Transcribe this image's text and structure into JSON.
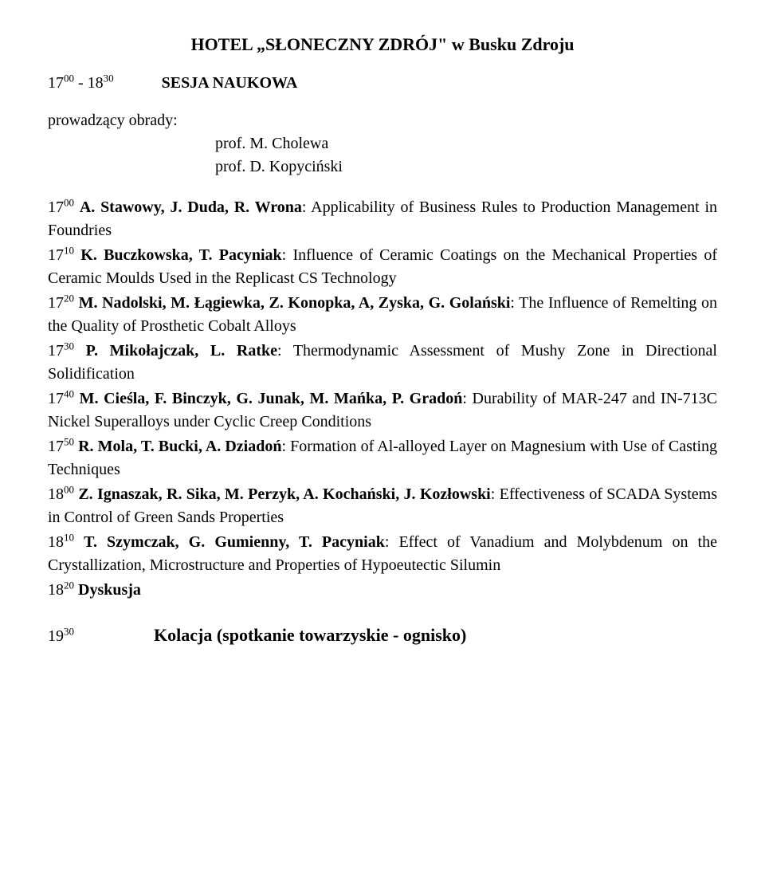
{
  "header": {
    "title": "HOTEL „SŁONECZNY ZDRÓJ\" w Busku Zdroju"
  },
  "session": {
    "time_lo": "17",
    "time_lo_sup": "00",
    "time_sep": "- 18",
    "time_hi_sup": "30",
    "label": "SESJA NAUKOWA"
  },
  "chairs": {
    "heading": "prowadzący obrady:",
    "chair1": "prof. M. Cholewa",
    "chair2": "prof. D. Kopyciński"
  },
  "items": [
    {
      "hour": "17",
      "min": "00",
      "authors": "A. Stawowy, J. Duda, R. Wrona",
      "title": ": Applicability of Business Rules to Production Management in Foundries"
    },
    {
      "hour": "17",
      "min": "10",
      "authors": "K. Buczkowska, T. Pacyniak",
      "title": ": Influence of Ceramic Coatings on the Mechanical Properties of Ceramic Moulds Used in the Replicast CS Technology"
    },
    {
      "hour": "17",
      "min": "20",
      "authors": "M. Nadolski, M. Łągiewka, Z. Konopka, A, Zyska, G. Golański",
      "title": ": The Influence of Remelting on the Quality of Prosthetic Cobalt Alloys"
    },
    {
      "hour": "17",
      "min": "30",
      "authors": "P. Mikołajczak, L. Ratke",
      "title": ": Thermodynamic Assessment of Mushy Zone in Directional Solidification"
    },
    {
      "hour": "17",
      "min": "40",
      "authors": "M. Cieśla, F. Binczyk, G. Junak, M. Mańka, P. Gradoń",
      "title": ": Durability of MAR-247 and IN-713C Nickel Superalloys under Cyclic Creep Conditions"
    },
    {
      "hour": "17",
      "min": "50",
      "authors": "R. Mola, T. Bucki, A. Dziadoń",
      "title": ": Formation of Al-alloyed Layer on Magnesium with Use of Casting Techniques"
    },
    {
      "hour": "18",
      "min": "00",
      "authors": "Z. Ignaszak, R. Sika, M. Perzyk, A. Kochański, J. Kozłowski",
      "title": ": Effectiveness of SCADA Systems in Control of Green Sands Properties"
    },
    {
      "hour": "18",
      "min": "10",
      "authors": "T. Szymczak, G. Gumienny, T. Pacyniak",
      "title": ": Effect of Vanadium and Molybdenum on the Crystallization, Microstructure and Properties of Hypoeutectic Silumin"
    },
    {
      "hour": "18",
      "min": "20",
      "authors": "Dyskusja",
      "title": ""
    }
  ],
  "closing": {
    "hour": "19",
    "min": "30",
    "text": "Kolacja (spotkanie towarzyskie - ognisko)"
  }
}
